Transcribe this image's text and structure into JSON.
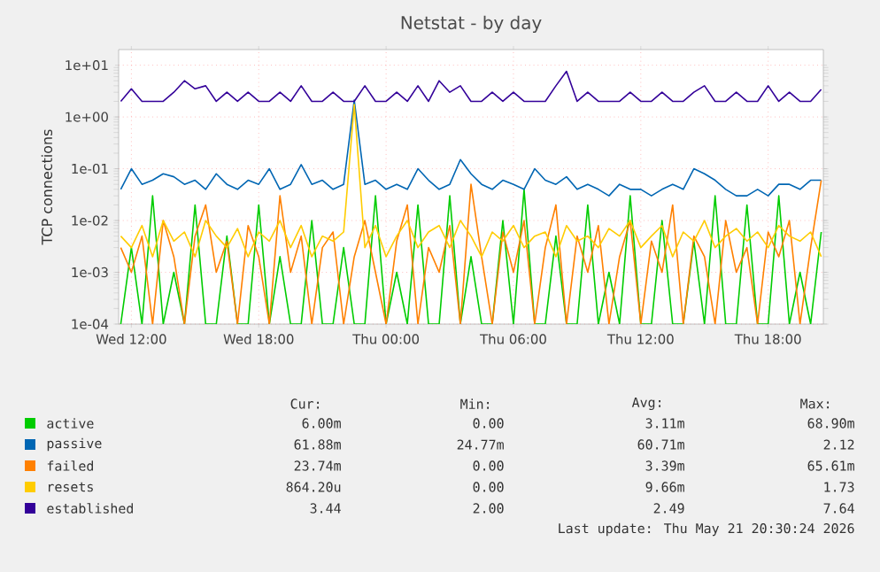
{
  "chart_data": {
    "type": "line",
    "title": "Netstat - by day",
    "ylabel": "TCP connections",
    "log": true,
    "grid": true,
    "legend": "bottom",
    "x": [
      "2026-05-20T11:30",
      "2026-05-20T12:00",
      "2026-05-20T12:30",
      "2026-05-20T13:00",
      "2026-05-20T13:30",
      "2026-05-20T14:00",
      "2026-05-20T14:30",
      "2026-05-20T15:00",
      "2026-05-20T15:30",
      "2026-05-20T16:00",
      "2026-05-20T16:30",
      "2026-05-20T17:00",
      "2026-05-20T17:30",
      "2026-05-20T18:00",
      "2026-05-20T18:30",
      "2026-05-20T19:00",
      "2026-05-20T19:30",
      "2026-05-20T20:00",
      "2026-05-20T20:30",
      "2026-05-20T21:00",
      "2026-05-20T21:30",
      "2026-05-20T22:00",
      "2026-05-20T22:30",
      "2026-05-20T23:00",
      "2026-05-20T23:30",
      "2026-05-21T00:00",
      "2026-05-21T00:30",
      "2026-05-21T01:00",
      "2026-05-21T01:30",
      "2026-05-21T02:00",
      "2026-05-21T02:30",
      "2026-05-21T03:00",
      "2026-05-21T03:30",
      "2026-05-21T04:00",
      "2026-05-21T04:30",
      "2026-05-21T05:00",
      "2026-05-21T05:30",
      "2026-05-21T06:00",
      "2026-05-21T06:30",
      "2026-05-21T07:00",
      "2026-05-21T07:30",
      "2026-05-21T08:00",
      "2026-05-21T08:30",
      "2026-05-21T09:00",
      "2026-05-21T09:30",
      "2026-05-21T10:00",
      "2026-05-21T10:30",
      "2026-05-21T11:00",
      "2026-05-21T11:30",
      "2026-05-21T12:00",
      "2026-05-21T12:30",
      "2026-05-21T13:00",
      "2026-05-21T13:30",
      "2026-05-21T14:00",
      "2026-05-21T14:30",
      "2026-05-21T15:00",
      "2026-05-21T15:30",
      "2026-05-21T16:00",
      "2026-05-21T16:30",
      "2026-05-21T17:00",
      "2026-05-21T17:30",
      "2026-05-21T18:00",
      "2026-05-21T18:30",
      "2026-05-21T19:00",
      "2026-05-21T19:30",
      "2026-05-21T20:00",
      "2026-05-21T20:30"
    ],
    "xlim": [
      "2026-05-20T11:24",
      "2026-05-21T20:36"
    ],
    "xticks": [
      {
        "value": "2026-05-20T12:00",
        "label": "Wed 12:00"
      },
      {
        "value": "2026-05-20T18:00",
        "label": "Wed 18:00"
      },
      {
        "value": "2026-05-21T00:00",
        "label": "Thu 00:00"
      },
      {
        "value": "2026-05-21T06:00",
        "label": "Thu 06:00"
      },
      {
        "value": "2026-05-21T12:00",
        "label": "Thu 12:00"
      },
      {
        "value": "2026-05-21T18:00",
        "label": "Thu 18:00"
      }
    ],
    "ylim": [
      0.0001,
      20
    ],
    "yticks": [
      {
        "value": 0.0001,
        "label": "1e-04"
      },
      {
        "value": 0.001,
        "label": "1e-03"
      },
      {
        "value": 0.01,
        "label": "1e-02"
      },
      {
        "value": 0.1,
        "label": "1e-01"
      },
      {
        "value": 1,
        "label": "1e+00"
      },
      {
        "value": 10,
        "label": "1e+01"
      }
    ],
    "series": [
      {
        "name": "active",
        "color": "#00cc00",
        "values": [
          0.0001,
          0.003,
          0.0001,
          0.03,
          0.0001,
          0.001,
          0.0001,
          0.02,
          0.0001,
          0.0001,
          0.005,
          0.0001,
          0.0001,
          0.02,
          0.0001,
          0.002,
          0.0001,
          0.0001,
          0.01,
          0.0001,
          0.0001,
          0.003,
          0.0001,
          0.0001,
          0.03,
          0.0001,
          0.001,
          0.0001,
          0.02,
          0.0001,
          0.0001,
          0.03,
          0.0001,
          0.002,
          0.0001,
          0.0001,
          0.01,
          0.0001,
          0.04,
          0.0001,
          0.0001,
          0.005,
          0.0001,
          0.0001,
          0.02,
          0.0001,
          0.001,
          0.0001,
          0.03,
          0.0001,
          0.0001,
          0.01,
          0.0001,
          0.0001,
          0.004,
          0.0001,
          0.03,
          0.0001,
          0.0001,
          0.02,
          0.0001,
          0.0001,
          0.03,
          0.0001,
          0.001,
          0.0001,
          0.006
        ]
      },
      {
        "name": "passive",
        "color": "#0066b3",
        "values": [
          0.04,
          0.1,
          0.05,
          0.06,
          0.08,
          0.07,
          0.05,
          0.06,
          0.04,
          0.08,
          0.05,
          0.04,
          0.06,
          0.05,
          0.1,
          0.04,
          0.05,
          0.12,
          0.05,
          0.06,
          0.04,
          0.05,
          2.12,
          0.05,
          0.06,
          0.04,
          0.05,
          0.04,
          0.1,
          0.06,
          0.04,
          0.05,
          0.15,
          0.08,
          0.05,
          0.04,
          0.06,
          0.05,
          0.04,
          0.1,
          0.06,
          0.05,
          0.07,
          0.04,
          0.05,
          0.04,
          0.03,
          0.05,
          0.04,
          0.04,
          0.03,
          0.04,
          0.05,
          0.04,
          0.1,
          0.08,
          0.06,
          0.04,
          0.03,
          0.03,
          0.04,
          0.03,
          0.05,
          0.05,
          0.04,
          0.06,
          0.06
        ]
      },
      {
        "name": "failed",
        "color": "#ff8000",
        "values": [
          0.003,
          0.001,
          0.005,
          0.0001,
          0.01,
          0.002,
          0.0001,
          0.005,
          0.02,
          0.001,
          0.004,
          0.0001,
          0.008,
          0.002,
          0.0001,
          0.03,
          0.001,
          0.005,
          0.0001,
          0.003,
          0.006,
          0.0001,
          0.002,
          0.01,
          0.001,
          0.0001,
          0.004,
          0.02,
          0.0001,
          0.003,
          0.001,
          0.008,
          0.0001,
          0.05,
          0.002,
          0.0001,
          0.006,
          0.001,
          0.01,
          0.0001,
          0.003,
          0.02,
          0.0001,
          0.005,
          0.001,
          0.008,
          0.0001,
          0.002,
          0.01,
          0.0001,
          0.004,
          0.001,
          0.02,
          0.0001,
          0.005,
          0.002,
          0.0001,
          0.01,
          0.001,
          0.003,
          0.0001,
          0.006,
          0.002,
          0.01,
          0.0001,
          0.003,
          0.06
        ]
      },
      {
        "name": "resets",
        "color": "#ffcc00",
        "values": [
          0.005,
          0.003,
          0.008,
          0.002,
          0.01,
          0.004,
          0.006,
          0.002,
          0.01,
          0.005,
          0.003,
          0.007,
          0.002,
          0.006,
          0.004,
          0.01,
          0.003,
          0.008,
          0.002,
          0.005,
          0.004,
          0.006,
          1.73,
          0.003,
          0.008,
          0.002,
          0.005,
          0.01,
          0.003,
          0.006,
          0.008,
          0.003,
          0.01,
          0.005,
          0.002,
          0.006,
          0.004,
          0.008,
          0.003,
          0.005,
          0.006,
          0.002,
          0.008,
          0.004,
          0.005,
          0.003,
          0.007,
          0.005,
          0.01,
          0.003,
          0.005,
          0.008,
          0.002,
          0.006,
          0.004,
          0.01,
          0.003,
          0.005,
          0.007,
          0.004,
          0.006,
          0.003,
          0.008,
          0.005,
          0.004,
          0.006,
          0.002
        ]
      },
      {
        "name": "established",
        "color": "#330099",
        "values": [
          2,
          3.5,
          2,
          2,
          2,
          3,
          5,
          3.5,
          4,
          2,
          3,
          2,
          3,
          2,
          2,
          3,
          2,
          4,
          2,
          2,
          3,
          2,
          2,
          4,
          2,
          2,
          3,
          2,
          4,
          2,
          5,
          3,
          4,
          2,
          2,
          3,
          2,
          3,
          2,
          2,
          2,
          4,
          7.6,
          2,
          3,
          2,
          2,
          2,
          3,
          2,
          2,
          3,
          2,
          2,
          3,
          4,
          2,
          2,
          3,
          2,
          2,
          4,
          2,
          3,
          2,
          2,
          3.4
        ]
      }
    ],
    "annotations": [
      "Cur:",
      "Min:",
      "Avg:",
      "Max:",
      "6.00m",
      "0.00",
      "3.11m",
      "68.90m",
      "61.88m",
      "24.77m",
      "60.71m",
      "2.12",
      "23.74m",
      "0.00",
      "3.39m",
      "65.61m",
      "864.20u",
      "0.00",
      "9.66m",
      "1.73",
      "3.44",
      "2.00",
      "2.49",
      "7.64",
      "Last update: Thu May 21 20:30:24 2026"
    ]
  }
}
